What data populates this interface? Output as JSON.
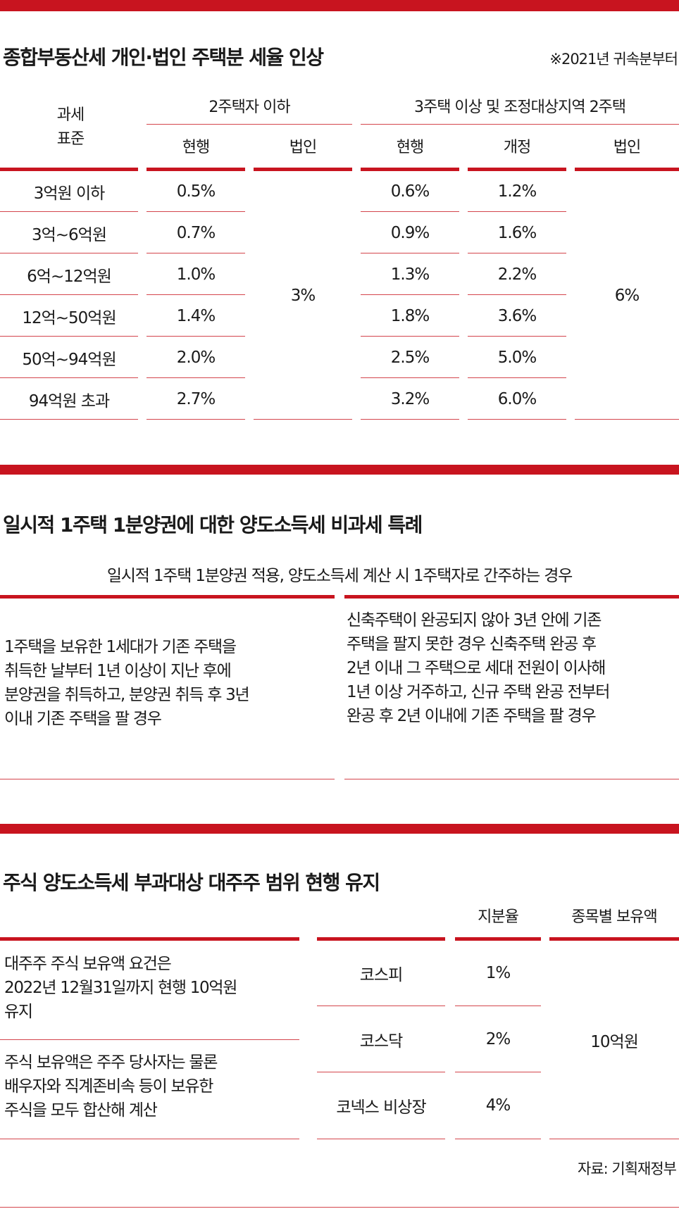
{
  "colors": {
    "accent": "#c8141f",
    "text": "#1a1a1a"
  },
  "section1": {
    "title": "종합부동산세 개인·법인 주택분 세율 인상",
    "note": "※2021년 귀속분부터",
    "col_tax_base": [
      "과세",
      "표준"
    ],
    "group_a": "2주택자 이하",
    "group_b": "3주택 이상 및 조정대상지역 2주택",
    "sub_current_a": "현행",
    "sub_corp_a": "법인",
    "sub_current_b": "현행",
    "sub_revised_b": "개정",
    "sub_corp_b": "법인",
    "corp_rate_a": "3%",
    "corp_rate_b": "6%",
    "rows": [
      {
        "bracket": "3억원 이하",
        "a_current": "0.5%",
        "b_current": "0.6%",
        "b_revised": "1.2%"
      },
      {
        "bracket": "3억~6억원",
        "a_current": "0.7%",
        "b_current": "0.9%",
        "b_revised": "1.6%"
      },
      {
        "bracket": "6억~12억원",
        "a_current": "1.0%",
        "b_current": "1.3%",
        "b_revised": "2.2%"
      },
      {
        "bracket": "12억~50억원",
        "a_current": "1.4%",
        "b_current": "1.8%",
        "b_revised": "3.6%"
      },
      {
        "bracket": "50억~94억원",
        "a_current": "2.0%",
        "b_current": "2.5%",
        "b_revised": "5.0%"
      },
      {
        "bracket": "94억원 초과",
        "a_current": "2.7%",
        "b_current": "3.2%",
        "b_revised": "6.0%"
      }
    ]
  },
  "section2": {
    "title": "일시적 1주택 1분양권에 대한 양도소득세 비과세 특례",
    "subtitle": "일시적 1주택 1분양권 적용, 양도소득세 계산 시 1주택자로 간주하는 경우",
    "left_lines": [
      "1주택을 보유한 1세대가 기존 주택을",
      "취득한 날부터 1년 이상이 지난 후에",
      "분양권을 취득하고, 분양권 취득 후 3년",
      "이내 기존 주택을 팔 경우"
    ],
    "right_lines": [
      "신축주택이 완공되지 않아 3년 안에 기존",
      "주택을 팔지 못한 경우 신축주택 완공 후",
      "2년 이내 그 주택으로 세대 전원이 이사해",
      "1년 이상 거주하고, 신규 주택 완공 전부터",
      "완공 후 2년 이내에 기존 주택을 팔 경우"
    ]
  },
  "section3": {
    "title": "주식 양도소득세 부과대상 대주주 범위 현행 유지",
    "col_share": "지분율",
    "col_holding": "종목별 보유액",
    "desc1_lines": [
      "대주주 주식 보유액 요건은",
      "2022년 12월31일까지 현행 10억원",
      "유지"
    ],
    "desc2_lines": [
      "주식 보유액은 주주 당사자는 물론",
      "배우자와 직계존비속 등이 보유한",
      "주식을 모두 합산해 계산"
    ],
    "markets": [
      {
        "name": "코스피",
        "share": "1%"
      },
      {
        "name": "코스닥",
        "share": "2%"
      },
      {
        "name": "코넥스 비상장",
        "share": "4%"
      }
    ],
    "holding_value": "10억원"
  },
  "source": "자료: 기획재정부"
}
